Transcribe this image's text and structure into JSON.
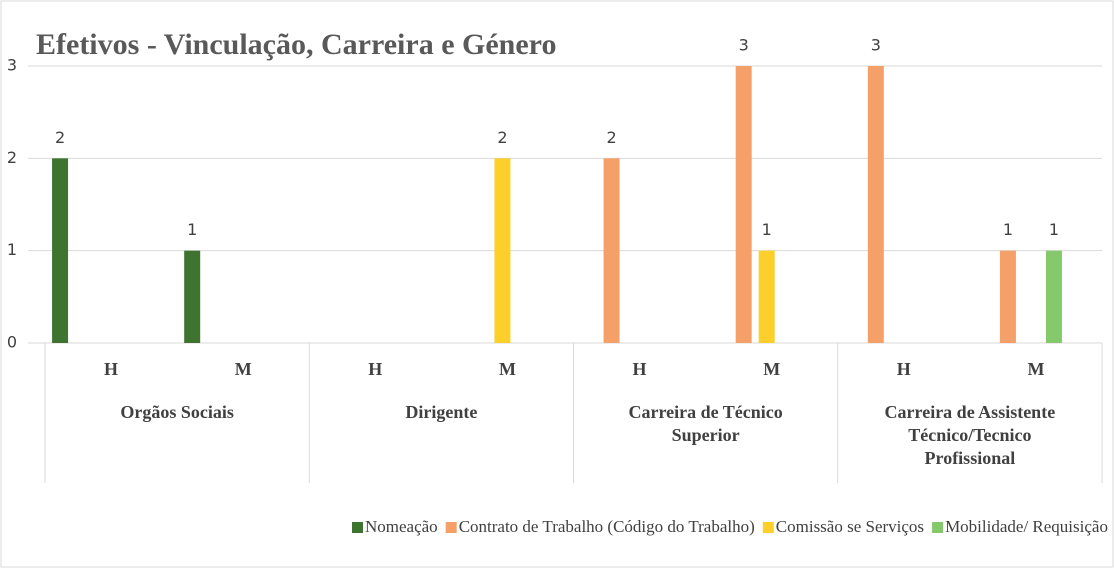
{
  "chart_data": {
    "type": "bar",
    "title": "Efetivos - Vinculação, Carreira e Género",
    "categories": [
      "H",
      "M",
      "H",
      "M",
      "H",
      "M",
      "H",
      "M"
    ],
    "groups": [
      "Orgãos Sociais",
      "Dirigente",
      "Carreira de Técnico Superior",
      "Carreira de Assistente Técnico/Tecnico Profissional"
    ],
    "series": [
      {
        "name": "Nomeação",
        "color": "#3f7330",
        "values": [
          2,
          1,
          null,
          null,
          null,
          null,
          null,
          null
        ]
      },
      {
        "name": "Contrato de Trabalho (Código do Trabalho)",
        "color": "#f5a068",
        "values": [
          null,
          null,
          null,
          null,
          2,
          3,
          3,
          1
        ]
      },
      {
        "name": "Comissão se Serviços",
        "color": "#fccf2a",
        "values": [
          null,
          null,
          null,
          2,
          null,
          1,
          null,
          null
        ]
      },
      {
        "name": "Mobilidade/ Requisição",
        "color": "#86c96c",
        "values": [
          null,
          null,
          null,
          null,
          null,
          null,
          null,
          1
        ]
      }
    ],
    "ylim": [
      0,
      3
    ],
    "yticks": [
      0,
      1,
      2,
      3
    ],
    "grid": true,
    "legend": "bottom"
  }
}
